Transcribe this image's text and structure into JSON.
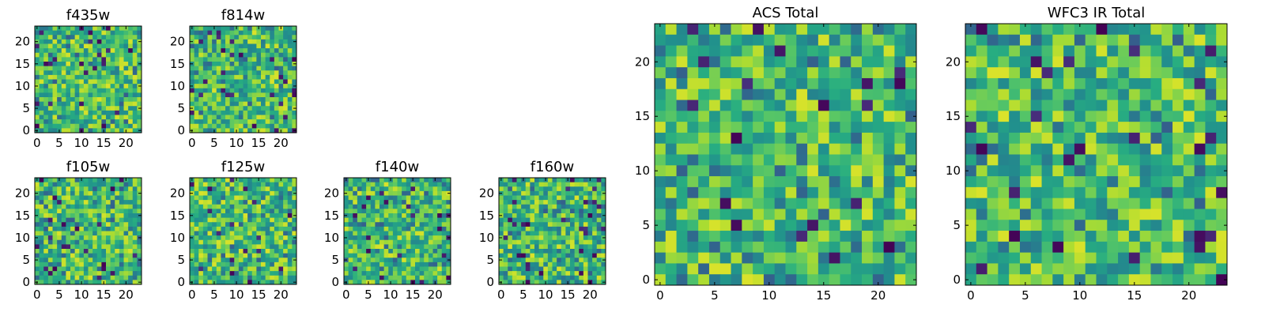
{
  "chart_data": [
    {
      "type": "heatmap",
      "title": "f435w",
      "xticks": [
        "0",
        "5",
        "10",
        "15",
        "20"
      ],
      "yticks": [
        "0",
        "5",
        "10",
        "15",
        "20"
      ],
      "xlim": [
        0,
        24
      ],
      "ylim": [
        0,
        24
      ],
      "grid_size": 24,
      "seed": 11
    },
    {
      "type": "heatmap",
      "title": "f814w",
      "xticks": [
        "0",
        "5",
        "10",
        "15",
        "20"
      ],
      "yticks": [
        "0",
        "5",
        "10",
        "15",
        "20"
      ],
      "xlim": [
        0,
        24
      ],
      "ylim": [
        0,
        24
      ],
      "grid_size": 24,
      "seed": 23
    },
    {
      "type": "heatmap",
      "title": "f105w",
      "xticks": [
        "0",
        "5",
        "10",
        "15",
        "20"
      ],
      "yticks": [
        "0",
        "5",
        "10",
        "15",
        "20"
      ],
      "xlim": [
        0,
        24
      ],
      "ylim": [
        0,
        24
      ],
      "grid_size": 24,
      "seed": 37
    },
    {
      "type": "heatmap",
      "title": "f125w",
      "xticks": [
        "0",
        "5",
        "10",
        "15",
        "20"
      ],
      "yticks": [
        "0",
        "5",
        "10",
        "15",
        "20"
      ],
      "xlim": [
        0,
        24
      ],
      "ylim": [
        0,
        24
      ],
      "grid_size": 24,
      "seed": 41
    },
    {
      "type": "heatmap",
      "title": "f140w",
      "xticks": [
        "0",
        "5",
        "10",
        "15",
        "20"
      ],
      "yticks": [
        "0",
        "5",
        "10",
        "15",
        "20"
      ],
      "xlim": [
        0,
        24
      ],
      "ylim": [
        0,
        24
      ],
      "grid_size": 24,
      "seed": 53
    },
    {
      "type": "heatmap",
      "title": "f160w",
      "xticks": [
        "0",
        "5",
        "10",
        "15",
        "20"
      ],
      "yticks": [
        "0",
        "5",
        "10",
        "15",
        "20"
      ],
      "xlim": [
        0,
        24
      ],
      "ylim": [
        0,
        24
      ],
      "grid_size": 24,
      "seed": 67
    },
    {
      "type": "heatmap",
      "title": "ACS Total",
      "xticks": [
        "0",
        "5",
        "10",
        "15",
        "20"
      ],
      "yticks": [
        "0",
        "5",
        "10",
        "15",
        "20"
      ],
      "xlim": [
        0,
        24
      ],
      "ylim": [
        0,
        24
      ],
      "grid_size": 24,
      "seed": 79
    },
    {
      "type": "heatmap",
      "title": "WFC3 IR Total",
      "xticks": [
        "0",
        "5",
        "10",
        "15",
        "20"
      ],
      "yticks": [
        "0",
        "5",
        "10",
        "15",
        "20"
      ],
      "xlim": [
        0,
        24
      ],
      "ylim": [
        0,
        24
      ],
      "grid_size": 24,
      "seed": 97
    }
  ],
  "colormap": "viridis",
  "colors": {
    "low": "#440154",
    "mid": "#21908d",
    "high": "#fde725"
  }
}
